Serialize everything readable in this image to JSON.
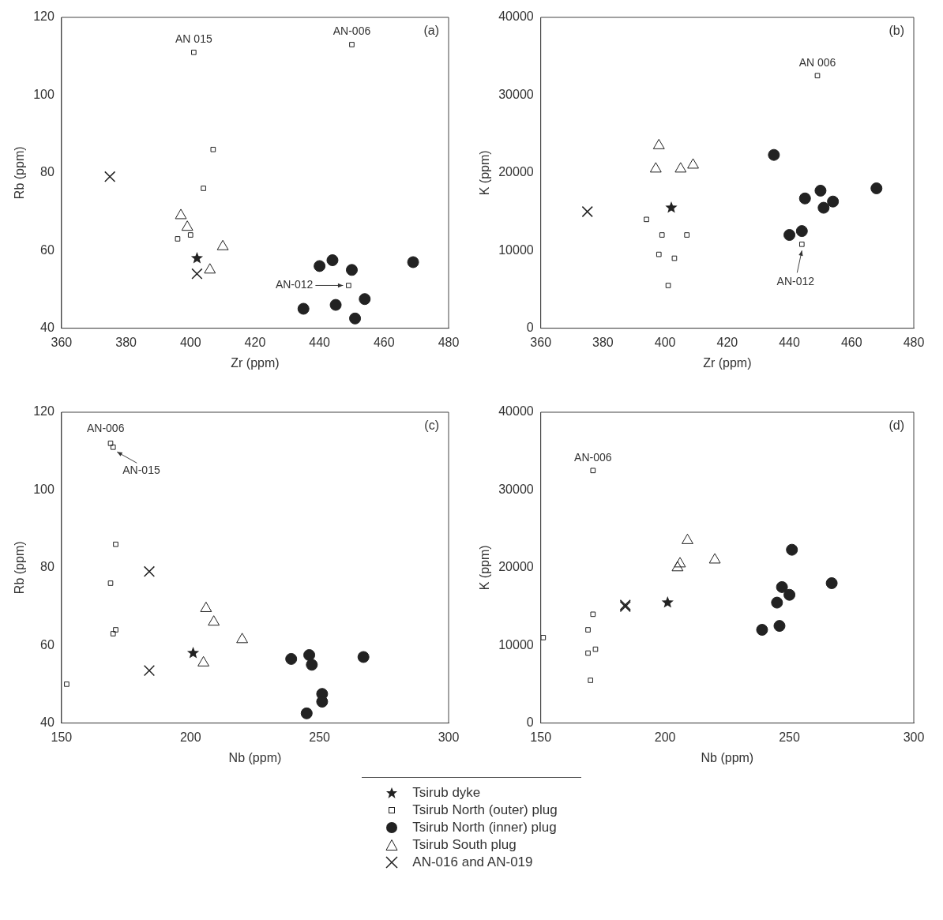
{
  "chart_data": [
    {
      "type": "scatter",
      "xlabel": "Zr (ppm)",
      "ylabel": "Rb (ppm)",
      "xlim": [
        360,
        480
      ],
      "xticks": [
        360,
        380,
        400,
        420,
        440,
        460,
        480
      ],
      "ylim": [
        40,
        120
      ],
      "yticks": [
        40,
        60,
        80,
        100,
        120
      ],
      "grid": false,
      "legend": "bottom",
      "series": [
        {
          "name": "Tsirub dyke",
          "color": "#222222",
          "marker": "star",
          "x": [
            402
          ],
          "values": [
            58
          ]
        },
        {
          "name": "Tsirub North (outer) plug",
          "color": "#222222",
          "marker": "square",
          "x": [
            401,
            450,
            407,
            404,
            396,
            400,
            449
          ],
          "values": [
            111,
            113,
            86,
            76,
            63,
            64,
            51
          ]
        },
        {
          "name": "Tsirub North (inner) plug",
          "color": "#222222",
          "marker": "circle",
          "x": [
            435,
            440,
            444,
            445,
            450,
            451,
            454,
            469
          ],
          "values": [
            45,
            56,
            57.5,
            46,
            55,
            42.5,
            47.5,
            57
          ]
        },
        {
          "name": "Tsirub South plug",
          "color": "#222222",
          "marker": "triangle",
          "x": [
            397,
            399,
            410,
            406
          ],
          "values": [
            69,
            66,
            61,
            55
          ]
        },
        {
          "name": "AN-016 and AN-019",
          "color": "#222222",
          "marker": "cross",
          "x": [
            375,
            402
          ],
          "values": [
            79,
            54
          ]
        }
      ],
      "annotations": [
        {
          "text": "AN 015",
          "x": 401,
          "y": 111
        },
        {
          "text": "AN-006",
          "x": 450,
          "y": 113
        },
        {
          "text": "AN-012",
          "x": 449,
          "y": 51
        },
        "(a)"
      ]
    },
    {
      "type": "scatter",
      "xlabel": "Zr (ppm)",
      "ylabel": "K (ppm)",
      "xlim": [
        360,
        480
      ],
      "xticks": [
        360,
        380,
        400,
        420,
        440,
        460,
        480
      ],
      "ylim": [
        0,
        40000
      ],
      "yticks": [
        0,
        10000,
        20000,
        30000,
        40000
      ],
      "grid": false,
      "series": [
        {
          "color": "#222222",
          "marker": "star",
          "x": [
            402
          ],
          "values": [
            15500
          ]
        },
        {
          "color": "#222222",
          "marker": "square",
          "x": [
            449,
            394,
            399,
            407,
            398,
            403,
            401,
            444
          ],
          "values": [
            32500,
            14000,
            12000,
            12000,
            9500,
            9000,
            5500,
            10800
          ]
        },
        {
          "color": "#222222",
          "marker": "circle",
          "x": [
            435,
            440,
            444,
            445,
            450,
            451,
            454,
            468
          ],
          "values": [
            22300,
            12000,
            12500,
            16700,
            17700,
            15500,
            16300,
            18000
          ]
        },
        {
          "color": "#222222",
          "marker": "triangle",
          "x": [
            398,
            397,
            405,
            409
          ],
          "values": [
            23500,
            20500,
            20500,
            21000
          ]
        },
        {
          "color": "#222222",
          "marker": "cross",
          "x": [
            375
          ],
          "values": [
            15000
          ]
        }
      ],
      "annotations": [
        {
          "text": "AN 006",
          "x": 449,
          "y": 32500
        },
        {
          "text": "AN-012",
          "x": 444,
          "y": 10800
        },
        "(b)"
      ]
    },
    {
      "type": "scatter",
      "xlabel": "Nb (ppm)",
      "ylabel": "Rb (ppm)",
      "xlim": [
        150,
        300
      ],
      "xticks": [
        150,
        200,
        250,
        300
      ],
      "ylim": [
        40,
        120
      ],
      "yticks": [
        40,
        60,
        80,
        100,
        120
      ],
      "grid": false,
      "series": [
        {
          "color": "#222222",
          "marker": "star",
          "x": [
            201
          ],
          "values": [
            58
          ]
        },
        {
          "color": "#222222",
          "marker": "square",
          "x": [
            169,
            170,
            171,
            169,
            171,
            170,
            152
          ],
          "values": [
            112,
            111,
            86,
            76,
            64,
            63,
            50
          ]
        },
        {
          "color": "#222222",
          "marker": "circle",
          "x": [
            239,
            246,
            247,
            245,
            251,
            251,
            267
          ],
          "values": [
            56.5,
            57.5,
            55,
            42.5,
            47.5,
            45.5,
            57
          ]
        },
        {
          "color": "#222222",
          "marker": "triangle",
          "x": [
            206,
            209,
            220,
            205
          ],
          "values": [
            69.5,
            66,
            61.5,
            55.5
          ]
        },
        {
          "color": "#222222",
          "marker": "cross",
          "x": [
            184,
            184
          ],
          "values": [
            79,
            53.5
          ]
        }
      ],
      "annotations": [
        {
          "text": "AN-006",
          "x": 169,
          "y": 112
        },
        {
          "text": "AN-015",
          "x": 170,
          "y": 111
        },
        "(c)"
      ]
    },
    {
      "type": "scatter",
      "xlabel": "Nb (ppm)",
      "ylabel": "K (ppm)",
      "xlim": [
        150,
        300
      ],
      "xticks": [
        150,
        200,
        250,
        300
      ],
      "ylim": [
        0,
        40000
      ],
      "yticks": [
        0,
        10000,
        20000,
        30000,
        40000
      ],
      "grid": false,
      "series": [
        {
          "color": "#222222",
          "marker": "star",
          "x": [
            201
          ],
          "values": [
            15500
          ]
        },
        {
          "color": "#222222",
          "marker": "square",
          "x": [
            171,
            171,
            169,
            172,
            169,
            170,
            151
          ],
          "values": [
            32500,
            14000,
            12000,
            9500,
            9000,
            5500,
            11000
          ]
        },
        {
          "color": "#222222",
          "marker": "circle",
          "x": [
            239,
            245,
            246,
            247,
            250,
            251,
            267
          ],
          "values": [
            12000,
            15500,
            12500,
            17500,
            16500,
            22300,
            18000
          ]
        },
        {
          "color": "#222222",
          "marker": "triangle",
          "x": [
            209,
            206,
            205,
            220
          ],
          "values": [
            23500,
            20500,
            20000,
            21000
          ]
        },
        {
          "color": "#222222",
          "marker": "cross",
          "x": [
            184,
            184
          ],
          "values": [
            15000,
            15200
          ]
        }
      ],
      "annotations": [
        {
          "text": "AN-006",
          "x": 171,
          "y": 32500
        },
        "(d)"
      ]
    }
  ]
}
